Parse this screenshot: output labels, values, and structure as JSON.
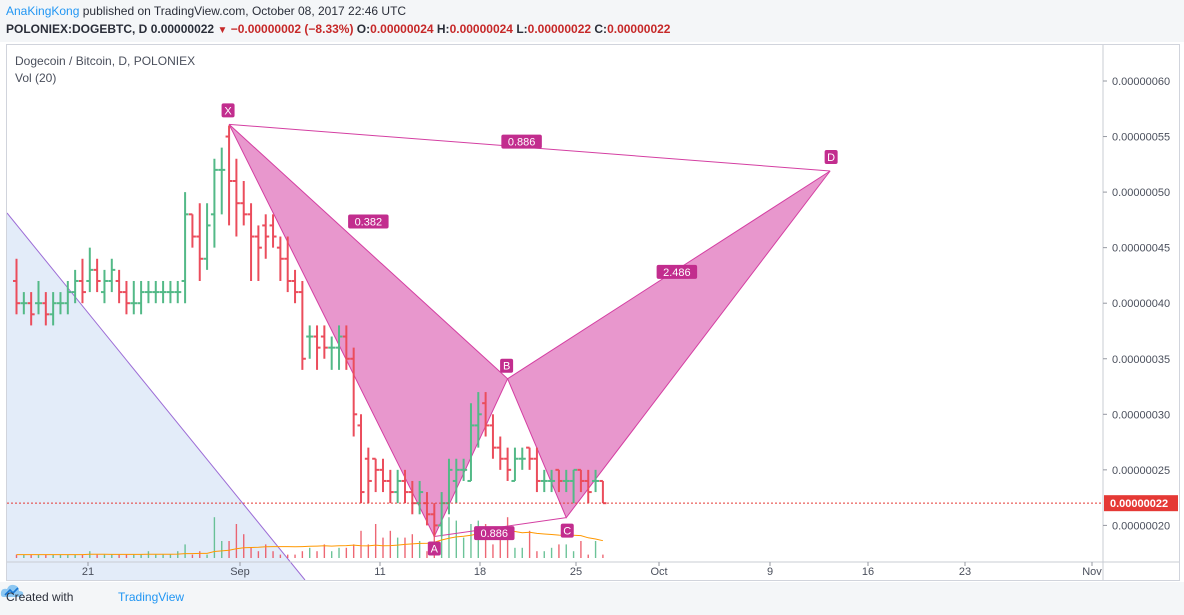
{
  "header": {
    "author": "AnaKingKong",
    "published_text": "published on TradingView.com, October 08, 2017 22:46 UTC",
    "symbol": "POLONIEX:DOGEBTC, D",
    "last": "0.00000022",
    "change": "−0.00000002 (−8.33%)",
    "open_label": "O:",
    "open_value": "0.00000024",
    "high_label": "H:",
    "high_value": "0.00000024",
    "low_label": "L:",
    "low_value": "0.00000022",
    "close_label": "C:",
    "close_value": "0.00000022"
  },
  "legend": {
    "title": "Dogecoin / Bitcoin, D, POLONIEX",
    "volume": "Vol (20)"
  },
  "footer": {
    "created_with": "Created with",
    "brand": "TradingView"
  },
  "colors": {
    "up": "#53b987",
    "down": "#eb4d5c",
    "pattern_fill": "#e68cc8",
    "pattern_line": "#d43fa2",
    "label_bg": "#c22d8e",
    "trend_line": "#9c6cd6",
    "trend_fill": "#e3ecf9",
    "vol_ma": "#ff9800",
    "price_line": "#e53935"
  },
  "chart_data": {
    "type": "ohlc",
    "x_ticks": [
      "21",
      "Sep",
      "11",
      "18",
      "25",
      "Oct",
      "9",
      "16",
      "23",
      "Nov"
    ],
    "y_ticks": [
      "0.00000060",
      "0.00000055",
      "0.00000050",
      "0.00000045",
      "0.00000040",
      "0.00000035",
      "0.00000030",
      "0.00000025",
      "0.00000020"
    ],
    "ylim": [
      1.83e-07,
      6.4e-07
    ],
    "current_price": "0.00000022",
    "bars": [
      {
        "o": 42,
        "h": 44,
        "l": 39,
        "c": 40
      },
      {
        "o": 40,
        "h": 41,
        "l": 39,
        "c": 40
      },
      {
        "o": 40,
        "h": 41,
        "l": 38,
        "c": 39
      },
      {
        "o": 40,
        "h": 42,
        "l": 39,
        "c": 40
      },
      {
        "o": 40,
        "h": 41,
        "l": 38,
        "c": 39
      },
      {
        "o": 39,
        "h": 41,
        "l": 38,
        "c": 40
      },
      {
        "o": 40,
        "h": 41,
        "l": 39,
        "c": 40
      },
      {
        "o": 40,
        "h": 42,
        "l": 39,
        "c": 41
      },
      {
        "o": 41,
        "h": 43,
        "l": 40,
        "c": 42
      },
      {
        "o": 42,
        "h": 44,
        "l": 40,
        "c": 41
      },
      {
        "o": 42,
        "h": 45,
        "l": 41,
        "c": 43
      },
      {
        "o": 43,
        "h": 44,
        "l": 41,
        "c": 42
      },
      {
        "o": 41,
        "h": 43,
        "l": 40,
        "c": 42
      },
      {
        "o": 42,
        "h": 44,
        "l": 41,
        "c": 43
      },
      {
        "o": 42,
        "h": 43,
        "l": 40,
        "c": 41
      },
      {
        "o": 41,
        "h": 42,
        "l": 39,
        "c": 40
      },
      {
        "o": 40,
        "h": 42,
        "l": 39,
        "c": 40
      },
      {
        "o": 40,
        "h": 42,
        "l": 39,
        "c": 41
      },
      {
        "o": 41,
        "h": 42,
        "l": 40,
        "c": 41
      },
      {
        "o": 41,
        "h": 42,
        "l": 40,
        "c": 41
      },
      {
        "o": 41,
        "h": 42,
        "l": 40,
        "c": 41
      },
      {
        "o": 41,
        "h": 42,
        "l": 40,
        "c": 41
      },
      {
        "o": 41,
        "h": 42,
        "l": 40,
        "c": 41
      },
      {
        "o": 42,
        "h": 50,
        "l": 40,
        "c": 48
      },
      {
        "o": 48,
        "h": 48,
        "l": 45,
        "c": 46
      },
      {
        "o": 46,
        "h": 49,
        "l": 42,
        "c": 44
      },
      {
        "o": 44,
        "h": 49,
        "l": 43,
        "c": 47
      },
      {
        "o": 48,
        "h": 53,
        "l": 45,
        "c": 52
      },
      {
        "o": 52,
        "h": 54,
        "l": 48,
        "c": 52
      },
      {
        "o": 55,
        "h": 56,
        "l": 47,
        "c": 51
      },
      {
        "o": 51,
        "h": 53,
        "l": 46,
        "c": 49
      },
      {
        "o": 49,
        "h": 51,
        "l": 47,
        "c": 48
      },
      {
        "o": 48,
        "h": 49,
        "l": 42,
        "c": 46
      },
      {
        "o": 46,
        "h": 47,
        "l": 42,
        "c": 45
      },
      {
        "o": 47,
        "h": 48,
        "l": 44,
        "c": 46
      },
      {
        "o": 47,
        "h": 48,
        "l": 45,
        "c": 46
      },
      {
        "o": 45,
        "h": 46,
        "l": 42,
        "c": 44
      },
      {
        "o": 44,
        "h": 46,
        "l": 41,
        "c": 42
      },
      {
        "o": 42,
        "h": 43,
        "l": 40,
        "c": 41
      },
      {
        "o": 41,
        "h": 42,
        "l": 34,
        "c": 35
      },
      {
        "o": 37,
        "h": 38,
        "l": 35,
        "c": 37
      },
      {
        "o": 37,
        "h": 38,
        "l": 34,
        "c": 36
      },
      {
        "o": 37,
        "h": 38,
        "l": 35,
        "c": 36
      },
      {
        "o": 36,
        "h": 37,
        "l": 34,
        "c": 36
      },
      {
        "o": 36,
        "h": 38,
        "l": 34,
        "c": 37
      },
      {
        "o": 37,
        "h": 38,
        "l": 34,
        "c": 35
      },
      {
        "o": 35,
        "h": 36,
        "l": 28,
        "c": 30
      },
      {
        "o": 29,
        "h": 30,
        "l": 22,
        "c": 23
      },
      {
        "o": 26,
        "h": 27,
        "l": 22,
        "c": 24
      },
      {
        "o": 26,
        "h": 26,
        "l": 23,
        "c": 25
      },
      {
        "o": 25,
        "h": 26,
        "l": 23,
        "c": 24
      },
      {
        "o": 24,
        "h": 25,
        "l": 22,
        "c": 23
      },
      {
        "o": 23,
        "h": 25,
        "l": 22,
        "c": 24
      },
      {
        "o": 24,
        "h": 25,
        "l": 22,
        "c": 23
      },
      {
        "o": 23,
        "h": 24,
        "l": 21,
        "c": 22
      },
      {
        "o": 22,
        "h": 24,
        "l": 21,
        "c": 23
      },
      {
        "o": 22,
        "h": 23,
        "l": 20,
        "c": 21
      },
      {
        "o": 21,
        "h": 22,
        "l": 19,
        "c": 20
      },
      {
        "o": 20,
        "h": 23,
        "l": 19,
        "c": 22
      },
      {
        "o": 22,
        "h": 26,
        "l": 21,
        "c": 25
      },
      {
        "o": 24,
        "h": 26,
        "l": 22,
        "c": 25
      },
      {
        "o": 25,
        "h": 26,
        "l": 24,
        "c": 25
      },
      {
        "o": 24,
        "h": 31,
        "l": 24,
        "c": 29
      },
      {
        "o": 29,
        "h": 32,
        "l": 27,
        "c": 30
      },
      {
        "o": 31,
        "h": 32,
        "l": 28,
        "c": 29
      },
      {
        "o": 29,
        "h": 30,
        "l": 26,
        "c": 27
      },
      {
        "o": 27,
        "h": 28,
        "l": 25,
        "c": 26
      },
      {
        "o": 26,
        "h": 27,
        "l": 24,
        "c": 25
      },
      {
        "o": 24,
        "h": 27,
        "l": 24,
        "c": 26
      },
      {
        "o": 26,
        "h": 27,
        "l": 25,
        "c": 26
      },
      {
        "o": 27,
        "h": 27,
        "l": 25,
        "c": 26
      },
      {
        "o": 26,
        "h": 27,
        "l": 23,
        "c": 24
      },
      {
        "o": 24,
        "h": 25,
        "l": 23,
        "c": 24
      },
      {
        "o": 24,
        "h": 25,
        "l": 23,
        "c": 24
      },
      {
        "o": 25,
        "h": 25,
        "l": 23,
        "c": 24
      },
      {
        "o": 24,
        "h": 25,
        "l": 23,
        "c": 24
      },
      {
        "o": 24,
        "h": 25,
        "l": 22,
        "c": 25
      },
      {
        "o": 25,
        "h": 25,
        "l": 23,
        "c": 24
      },
      {
        "o": 24,
        "h": 25,
        "l": 22,
        "c": 23
      },
      {
        "o": 24,
        "h": 25,
        "l": 23,
        "c": 24
      },
      {
        "o": 24,
        "h": 24,
        "l": 22,
        "c": 22
      }
    ],
    "volume": [
      1,
      1,
      1,
      1,
      1,
      1,
      1,
      1,
      1,
      1,
      2,
      1,
      1,
      1,
      1,
      1,
      1,
      1,
      2,
      1,
      1,
      1,
      2,
      4,
      1,
      2,
      1,
      12,
      5,
      5,
      10,
      7,
      3,
      2,
      4,
      2,
      1,
      1,
      1,
      2,
      3,
      2,
      4,
      2,
      3,
      3,
      4,
      8,
      4,
      10,
      6,
      8,
      6,
      6,
      7,
      5,
      2,
      7,
      14,
      12,
      11,
      6,
      10,
      11,
      10,
      4,
      6,
      12,
      3,
      3,
      8,
      2,
      2,
      3,
      4,
      4,
      2,
      5,
      1,
      5,
      1
    ],
    "harmonic_pattern": {
      "points": {
        "X": {
          "label": "X",
          "bar": 29,
          "price": 5.61e-07
        },
        "A": {
          "label": "A",
          "bar": 57,
          "price": 1.9e-07
        },
        "B": {
          "label": "B",
          "bar": 67,
          "price": 3.32e-07
        },
        "C": {
          "label": "C",
          "bar": 75,
          "price": 2.07e-07
        },
        "D": {
          "label": "D",
          "bar": 111,
          "price": 5.19e-07
        }
      },
      "ratios": {
        "XB": "0.382",
        "AC": "0.886",
        "BD": "2.486",
        "XD": "0.886"
      }
    }
  }
}
